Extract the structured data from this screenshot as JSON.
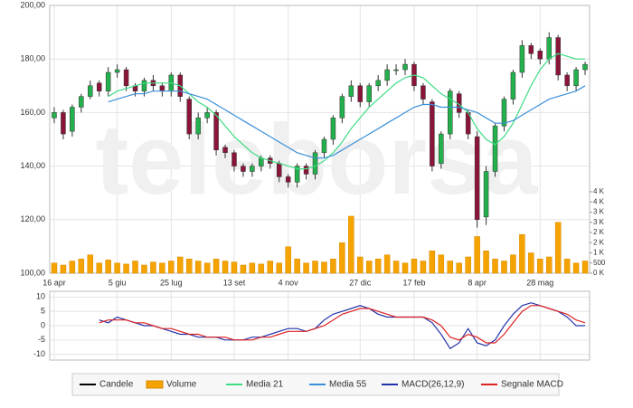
{
  "chart_data": [
    {
      "type": "candlestick",
      "watermark": "teleborsa",
      "categories": [
        "16 apr",
        null,
        null,
        null,
        null,
        null,
        null,
        "5 giu",
        null,
        null,
        null,
        null,
        null,
        "25 lug",
        null,
        null,
        null,
        null,
        null,
        null,
        "13 set",
        null,
        null,
        null,
        null,
        null,
        "4 nov",
        null,
        null,
        null,
        null,
        null,
        null,
        null,
        "27 dic",
        null,
        null,
        null,
        null,
        null,
        "17 feb",
        null,
        null,
        null,
        null,
        null,
        null,
        "8 apr",
        null,
        null,
        null,
        null,
        null,
        null,
        "28 mag",
        null,
        null,
        null,
        null,
        null
      ],
      "ylim": [
        100,
        200
      ],
      "yticks": [
        {
          "value": 100,
          "label": "100,00"
        },
        {
          "value": 120,
          "label": "120,00"
        },
        {
          "value": 140,
          "label": "140,00"
        },
        {
          "value": 160,
          "label": "160,00"
        },
        {
          "value": 180,
          "label": "180,00"
        },
        {
          "value": 200,
          "label": "200,00"
        }
      ],
      "y2lim": [
        0,
        13150
      ],
      "y2ticks": [
        {
          "value": 0,
          "label": "0 K"
        },
        {
          "value": 500,
          "label": "500"
        },
        {
          "value": 1000,
          "label": "1 K"
        },
        {
          "value": 1500,
          "label": "2 K"
        },
        {
          "value": 2000,
          "label": "2 K"
        },
        {
          "value": 2500,
          "label": "3 K"
        },
        {
          "value": 3000,
          "label": "3 K"
        },
        {
          "value": 3500,
          "label": "4 K"
        },
        {
          "value": 4000,
          "label": "4 K"
        }
      ],
      "grid": true,
      "series": [
        {
          "name": "Candele",
          "type": "candlestick",
          "color": "#000000",
          "up_color": "#22b14c",
          "down_color": "#8b1538",
          "open": [
            158,
            160,
            153,
            162,
            166,
            171,
            168,
            175,
            176,
            170,
            168,
            172,
            170,
            168,
            174,
            165,
            152,
            158,
            160,
            147,
            145,
            140,
            138,
            140,
            143,
            141,
            136,
            134,
            140,
            137,
            145,
            150,
            158,
            166,
            170,
            164,
            170,
            172,
            176,
            176,
            178,
            170,
            164,
            141,
            152,
            167,
            160,
            151,
            121,
            138,
            155,
            165,
            175,
            185,
            183,
            180,
            188,
            174,
            170,
            176
          ],
          "high": [
            162,
            161,
            163,
            167,
            172,
            172,
            177,
            178,
            177,
            171,
            173,
            174,
            171,
            175,
            175,
            166,
            160,
            162,
            161,
            148,
            146,
            141,
            141,
            144,
            144,
            142,
            137,
            141,
            141,
            146,
            151,
            159,
            167,
            172,
            171,
            171,
            174,
            178,
            178,
            180,
            179,
            171,
            165,
            153,
            169,
            168,
            161,
            153,
            140,
            156,
            166,
            176,
            187,
            186,
            184,
            190,
            189,
            175,
            177,
            179
          ],
          "low": [
            156,
            150,
            151,
            160,
            165,
            166,
            166,
            173,
            168,
            166,
            166,
            168,
            166,
            166,
            164,
            150,
            150,
            156,
            144,
            143,
            138,
            136,
            136,
            138,
            139,
            134,
            132,
            132,
            135,
            135,
            143,
            148,
            156,
            164,
            162,
            162,
            168,
            170,
            174,
            174,
            168,
            163,
            138,
            139,
            150,
            158,
            150,
            117,
            118,
            136,
            153,
            163,
            173,
            180,
            178,
            178,
            172,
            168,
            168,
            174
          ],
          "close": [
            160,
            152,
            162,
            166,
            170,
            168,
            175,
            176,
            170,
            168,
            172,
            170,
            168,
            174,
            166,
            152,
            158,
            160,
            146,
            145,
            140,
            138,
            140,
            143,
            141,
            136,
            134,
            140,
            137,
            145,
            150,
            158,
            166,
            170,
            164,
            170,
            172,
            176,
            176,
            178,
            170,
            165,
            140,
            152,
            168,
            160,
            152,
            120,
            138,
            155,
            165,
            175,
            185,
            182,
            180,
            188,
            174,
            170,
            176,
            178
          ]
        },
        {
          "name": "Volume",
          "type": "bar",
          "axis": "y2",
          "color": "#f5a300",
          "values": [
            500,
            400,
            600,
            700,
            900,
            500,
            650,
            500,
            450,
            600,
            400,
            550,
            500,
            600,
            800,
            700,
            600,
            500,
            700,
            600,
            550,
            400,
            500,
            450,
            600,
            500,
            1300,
            700,
            500,
            600,
            550,
            700,
            1500,
            2800,
            800,
            600,
            700,
            900,
            600,
            500,
            700,
            600,
            1100,
            900,
            600,
            500,
            800,
            1800,
            1100,
            700,
            600,
            900,
            1900,
            1000,
            700,
            800,
            2500,
            700,
            500,
            600
          ]
        },
        {
          "name": "Media 21",
          "type": "line",
          "color": "#3ddc84",
          "values": [
            null,
            null,
            null,
            null,
            null,
            null,
            166,
            168,
            169,
            170,
            171,
            171,
            171,
            171,
            170,
            167,
            164,
            162,
            159,
            155,
            151,
            148,
            145,
            143,
            142,
            141,
            140,
            139,
            139,
            140,
            142,
            145,
            149,
            154,
            158,
            162,
            165,
            168,
            171,
            173,
            174,
            173,
            170,
            167,
            165,
            163,
            160,
            154,
            150,
            148,
            151,
            156,
            163,
            170,
            176,
            180,
            182,
            181,
            180,
            180
          ]
        },
        {
          "name": "Media 55",
          "type": "line",
          "color": "#3a8fd8",
          "values": [
            null,
            null,
            null,
            null,
            null,
            null,
            164,
            165,
            166,
            167,
            167,
            168,
            168,
            168,
            168,
            167,
            166,
            165,
            163,
            161,
            159,
            157,
            155,
            153,
            151,
            149,
            147,
            145,
            144,
            143,
            143,
            144,
            146,
            148,
            150,
            152,
            154,
            156,
            158,
            160,
            162,
            163,
            163,
            162,
            162,
            162,
            161,
            160,
            158,
            156,
            156,
            157,
            159,
            161,
            163,
            165,
            166,
            167,
            168,
            170
          ]
        }
      ]
    },
    {
      "type": "line",
      "ylim": [
        -12,
        12
      ],
      "yticks": [
        -10,
        -5,
        0,
        5,
        10
      ],
      "grid": true,
      "series": [
        {
          "name": "MACD(26,12,9)",
          "color": "#2233aa",
          "values": [
            null,
            null,
            null,
            null,
            null,
            2,
            1,
            3,
            2,
            1,
            0,
            0,
            -1,
            -2,
            -3,
            -3,
            -4,
            -4,
            -4,
            -5,
            -5,
            -5,
            -4,
            -4,
            -3,
            -2,
            -1,
            -1,
            -2,
            -1,
            2,
            4,
            5,
            6,
            7,
            6,
            4,
            3,
            3,
            3,
            3,
            3,
            1,
            -3,
            -8,
            -6,
            -1,
            -6,
            -7,
            -5,
            0,
            4,
            7,
            8,
            7,
            6,
            5,
            3,
            0,
            0
          ]
        },
        {
          "name": "Segnale MACD",
          "color": "#dd2222",
          "values": [
            null,
            null,
            null,
            null,
            null,
            1,
            2,
            2,
            2,
            1,
            1,
            0,
            -1,
            -1,
            -2,
            -3,
            -3,
            -4,
            -4,
            -4,
            -5,
            -5,
            -5,
            -4,
            -4,
            -3,
            -2,
            -2,
            -2,
            -1,
            0,
            2,
            4,
            5,
            6,
            6,
            5,
            4,
            3,
            3,
            3,
            3,
            2,
            0,
            -4,
            -5,
            -3,
            -4,
            -6,
            -6,
            -3,
            1,
            5,
            7,
            7,
            6,
            5,
            4,
            2,
            1
          ]
        }
      ]
    }
  ]
}
